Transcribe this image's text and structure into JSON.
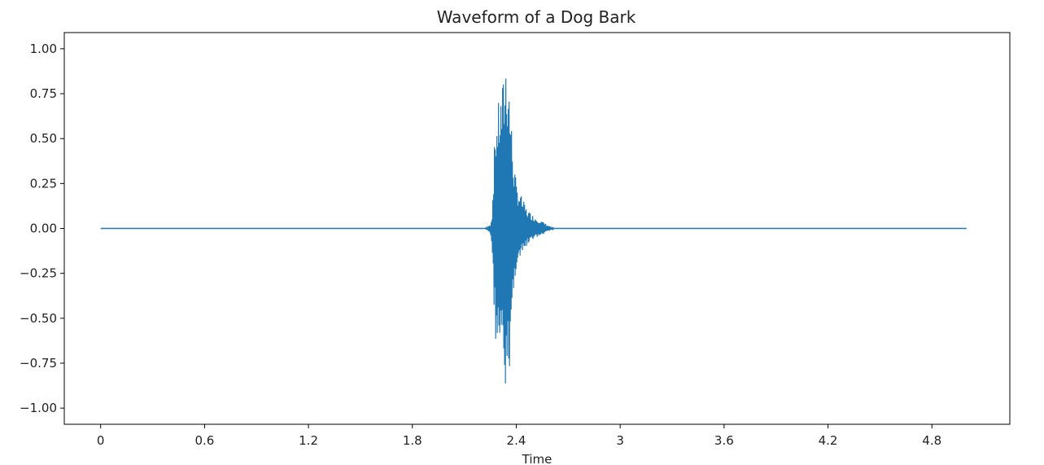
{
  "chart_data": {
    "type": "line",
    "title": "Waveform of a Dog Bark",
    "xlabel": "Time",
    "ylabel": "",
    "xlim": [
      -0.21,
      5.25
    ],
    "ylim": [
      -1.09,
      1.09
    ],
    "x_ticks": [
      0,
      0.6,
      1.2,
      1.8,
      2.4,
      3.0,
      3.6,
      4.2,
      4.8
    ],
    "x_tick_labels": [
      "0",
      "0.6",
      "1.2",
      "1.8",
      "2.4",
      "3",
      "3.6",
      "4.2",
      "4.8"
    ],
    "y_ticks": [
      1.0,
      0.75,
      0.5,
      0.25,
      0.0,
      -0.25,
      -0.5,
      -0.75,
      -1.0
    ],
    "y_tick_labels": [
      "1.00",
      "0.75",
      "0.50",
      "0.25",
      "0.00",
      "−0.25",
      "−0.50",
      "−0.75",
      "−1.00"
    ],
    "grid": false,
    "legend": "none",
    "series": [
      {
        "color": "#1f77b4",
        "x_start": 0.0,
        "x_end": 5.0,
        "baseline": 0.0,
        "envelope": {
          "x": [
            0.0,
            2.22,
            2.25,
            2.26,
            2.27,
            2.28,
            2.29,
            2.3,
            2.31,
            2.32,
            2.33,
            2.34,
            2.35,
            2.36,
            2.38,
            2.4,
            2.43,
            2.46,
            2.5,
            2.55,
            2.58,
            2.62,
            5.0
          ],
          "upper": [
            0.0,
            0.0,
            0.02,
            0.08,
            0.35,
            0.62,
            0.65,
            0.72,
            0.75,
            0.8,
            0.88,
            0.99,
            0.96,
            0.82,
            0.45,
            0.25,
            0.18,
            0.11,
            0.07,
            0.04,
            0.02,
            0.0,
            0.0
          ],
          "lower": [
            0.0,
            0.0,
            -0.03,
            -0.1,
            -0.4,
            -0.62,
            -0.68,
            -0.72,
            -0.74,
            -0.78,
            -0.9,
            -0.99,
            -0.92,
            -0.8,
            -0.42,
            -0.22,
            -0.16,
            -0.1,
            -0.06,
            -0.04,
            -0.02,
            0.0,
            0.0
          ]
        }
      }
    ]
  }
}
